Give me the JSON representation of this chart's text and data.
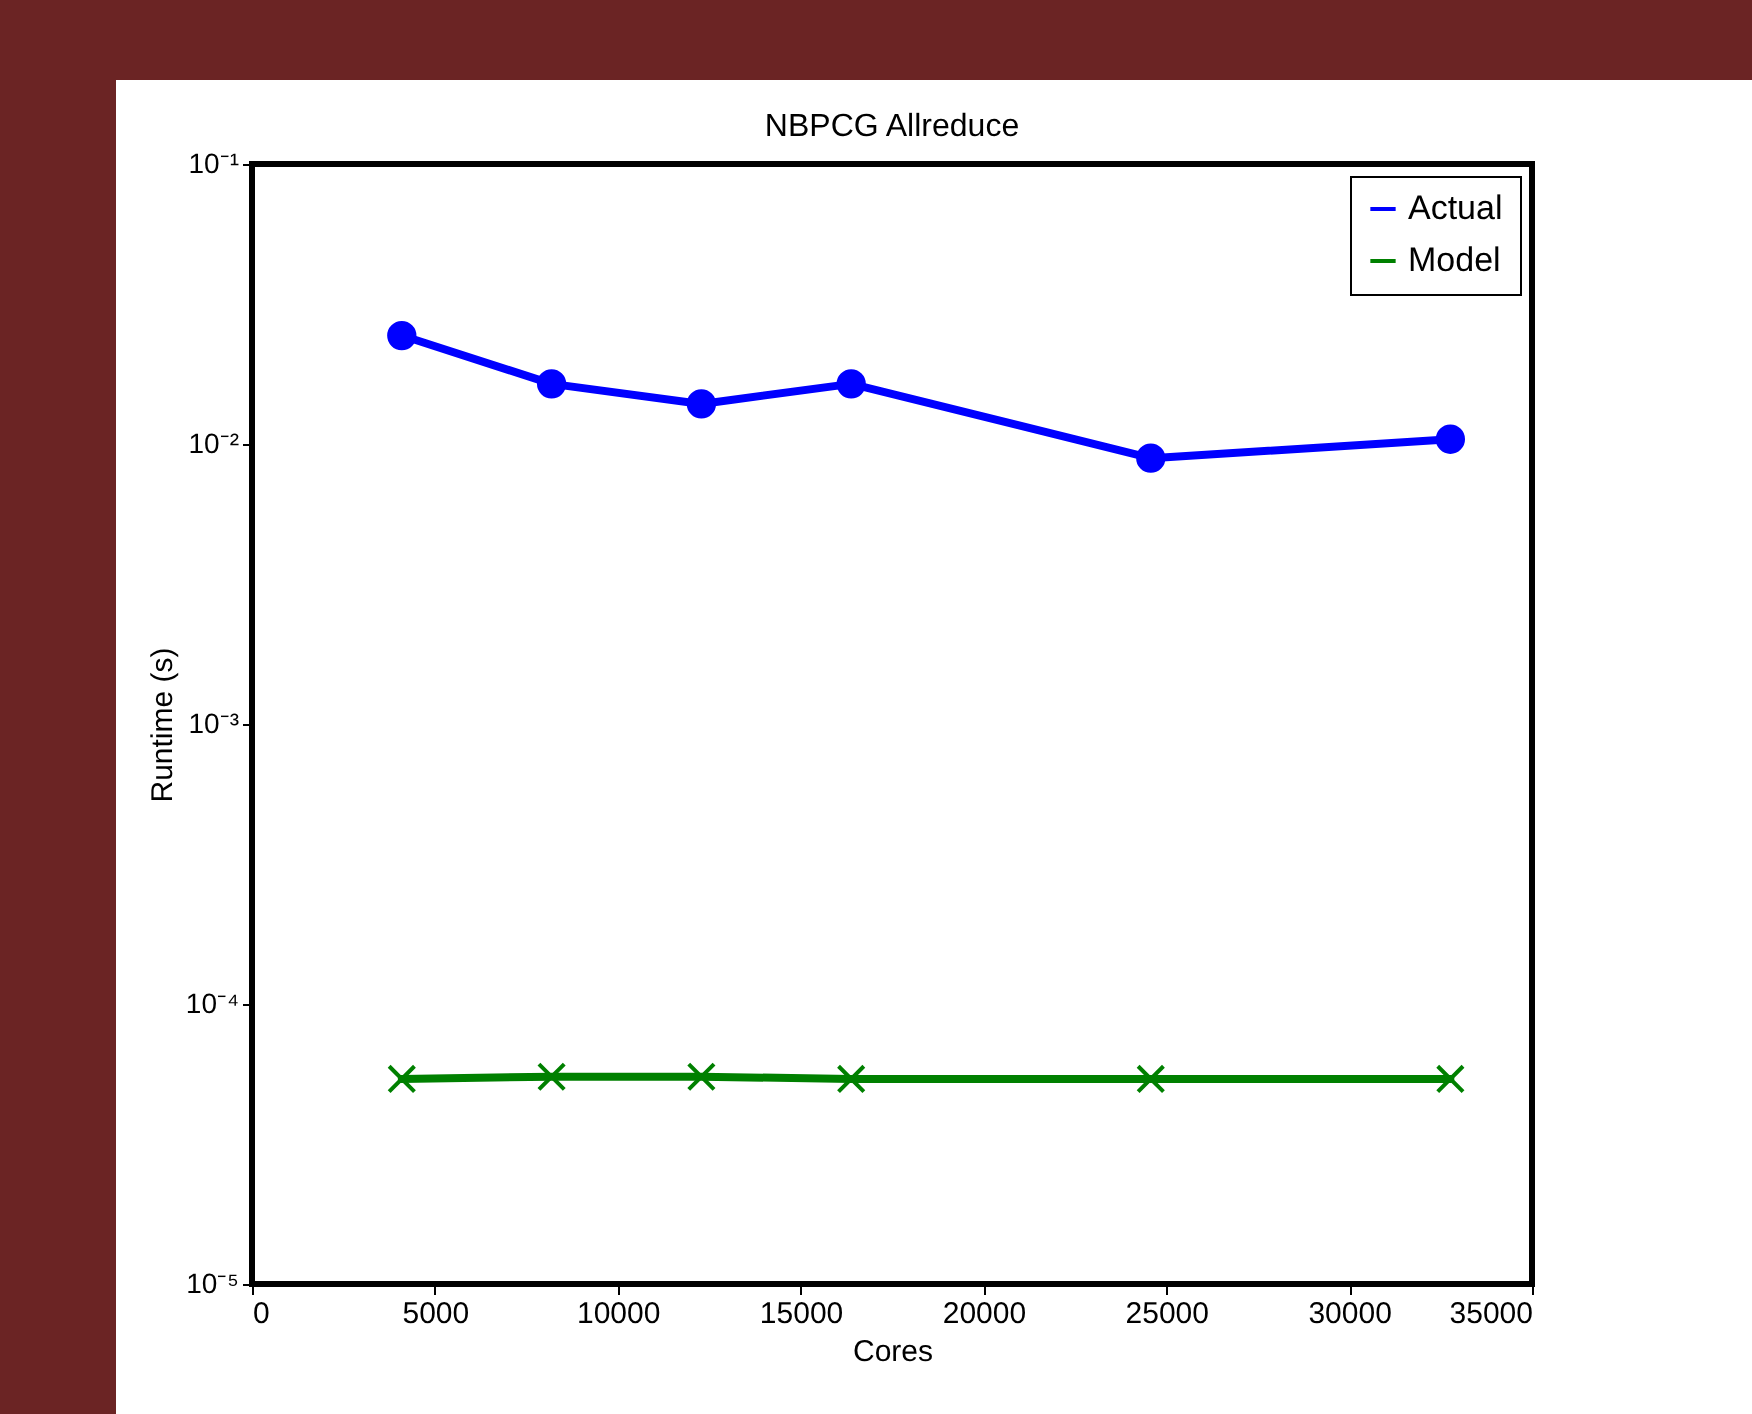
{
  "chart_data": {
    "type": "line",
    "title": "NBPCG Allreduce",
    "xlabel": "Cores",
    "ylabel": "Runtime (s)",
    "x": [
      4096,
      8192,
      12288,
      16384,
      24576,
      32768
    ],
    "series": [
      {
        "name": "Actual",
        "color": "#0000ff",
        "marker": "circle",
        "values": [
          0.0244,
          0.0164,
          0.0139,
          0.0164,
          0.0089,
          0.0104
        ]
      },
      {
        "name": "Model",
        "color": "#008000",
        "marker": "cross",
        "values": [
          5.4e-05,
          5.5e-05,
          5.5e-05,
          5.4e-05,
          5.4e-05,
          5.4e-05
        ]
      }
    ],
    "xlim": [
      0,
      35000
    ],
    "xticks": [
      0,
      5000,
      10000,
      15000,
      20000,
      25000,
      30000,
      35000
    ],
    "ylim": [
      1e-05,
      0.1
    ],
    "yticks": [
      {
        "value": 1e-05,
        "label": "10⁻⁵"
      },
      {
        "value": 0.0001,
        "label": "10⁻⁴"
      },
      {
        "value": 0.001,
        "label": "10⁻³"
      },
      {
        "value": 0.01,
        "label": "10⁻²"
      },
      {
        "value": 0.1,
        "label": "10⁻¹"
      }
    ],
    "log": true,
    "grid": false,
    "legend": "top right",
    "line_style": "solid"
  }
}
